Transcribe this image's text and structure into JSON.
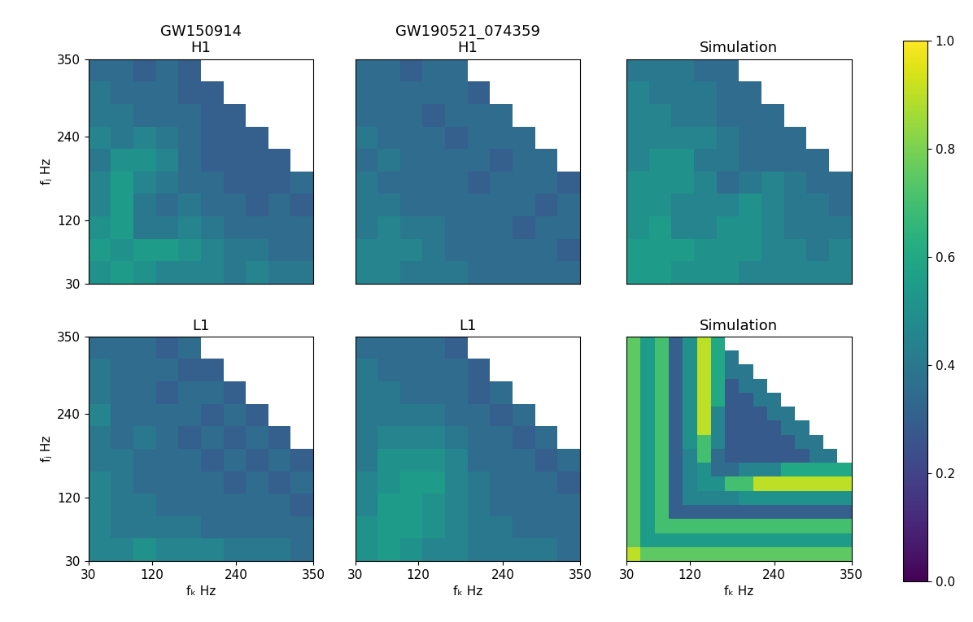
{
  "chart_data": [
    {
      "type": "heatmap",
      "title": "GW150914\nH1",
      "ylabel": "fⱼ Hz",
      "xlim": [
        30,
        350
      ],
      "ylim": [
        30,
        350
      ],
      "yticks": [
        30,
        120,
        240,
        350
      ],
      "x_edges": [
        30,
        62,
        94,
        126,
        158,
        190,
        222,
        254,
        286,
        318,
        350
      ],
      "y_edges": [
        30,
        62,
        94,
        126,
        158,
        190,
        222,
        254,
        286,
        318,
        350
      ],
      "cells": [
        [
          0.5,
          0.55,
          0.5,
          0.45,
          0.45,
          0.45,
          0.4,
          0.45,
          0.4,
          0.4
        ],
        [
          0.55,
          0.5,
          0.55,
          0.55,
          0.5,
          0.45,
          0.4,
          0.4,
          0.35,
          0.35
        ],
        [
          0.5,
          0.55,
          0.4,
          0.4,
          0.45,
          0.4,
          0.35,
          0.35,
          0.35,
          0.35
        ],
        [
          0.45,
          0.55,
          0.4,
          0.35,
          0.4,
          0.35,
          0.35,
          0.3,
          0.35,
          0.3
        ],
        [
          0.45,
          0.55,
          0.45,
          0.4,
          0.35,
          0.35,
          0.3,
          0.3,
          0.3,
          0.35
        ],
        [
          0.4,
          0.5,
          0.5,
          0.45,
          0.35,
          0.3,
          0.3,
          0.3,
          0.3,
          null
        ],
        [
          0.45,
          0.4,
          0.45,
          0.4,
          0.35,
          0.3,
          0.3,
          0.3,
          null,
          null
        ],
        [
          0.4,
          0.4,
          0.35,
          0.35,
          0.35,
          0.3,
          0.3,
          null,
          null,
          null
        ],
        [
          0.4,
          0.35,
          0.35,
          0.35,
          0.3,
          0.3,
          null,
          null,
          null,
          null
        ],
        [
          0.35,
          0.35,
          0.3,
          0.35,
          0.3,
          null,
          null,
          null,
          null,
          null
        ]
      ]
    },
    {
      "type": "heatmap",
      "title": "GW190521_074359\nH1",
      "xlim": [
        30,
        350
      ],
      "ylim": [
        30,
        350
      ],
      "x_edges": [
        30,
        62,
        94,
        126,
        158,
        190,
        222,
        254,
        286,
        318,
        350
      ],
      "y_edges": [
        30,
        62,
        94,
        126,
        158,
        190,
        222,
        254,
        286,
        318,
        350
      ],
      "cells": [
        [
          0.45,
          0.45,
          0.4,
          0.4,
          0.4,
          0.35,
          0.35,
          0.35,
          0.35,
          0.35
        ],
        [
          0.45,
          0.45,
          0.45,
          0.4,
          0.35,
          0.35,
          0.35,
          0.35,
          0.35,
          0.3
        ],
        [
          0.4,
          0.45,
          0.4,
          0.4,
          0.35,
          0.35,
          0.35,
          0.3,
          0.35,
          0.35
        ],
        [
          0.4,
          0.4,
          0.35,
          0.35,
          0.35,
          0.35,
          0.35,
          0.35,
          0.3,
          0.35
        ],
        [
          0.4,
          0.35,
          0.35,
          0.35,
          0.35,
          0.3,
          0.35,
          0.35,
          0.35,
          0.3
        ],
        [
          0.35,
          0.4,
          0.35,
          0.35,
          0.35,
          0.35,
          0.3,
          0.35,
          0.35,
          null
        ],
        [
          0.4,
          0.35,
          0.35,
          0.35,
          0.3,
          0.35,
          0.35,
          0.35,
          null,
          null
        ],
        [
          0.35,
          0.35,
          0.35,
          0.3,
          0.35,
          0.35,
          0.35,
          null,
          null,
          null
        ],
        [
          0.35,
          0.35,
          0.35,
          0.35,
          0.35,
          0.3,
          null,
          null,
          null,
          null
        ],
        [
          0.35,
          0.35,
          0.3,
          0.35,
          0.35,
          null,
          null,
          null,
          null,
          null
        ]
      ]
    },
    {
      "type": "heatmap",
      "title": "Simulation",
      "xlim": [
        30,
        350
      ],
      "ylim": [
        30,
        350
      ],
      "x_edges": [
        30,
        62,
        94,
        126,
        158,
        190,
        222,
        254,
        286,
        318,
        350
      ],
      "y_edges": [
        30,
        62,
        94,
        126,
        158,
        190,
        222,
        254,
        286,
        318,
        350
      ],
      "cells": [
        [
          0.55,
          0.55,
          0.5,
          0.5,
          0.5,
          0.45,
          0.45,
          0.45,
          0.45,
          0.45
        ],
        [
          0.55,
          0.55,
          0.55,
          0.5,
          0.5,
          0.5,
          0.45,
          0.45,
          0.4,
          0.45
        ],
        [
          0.5,
          0.55,
          0.45,
          0.45,
          0.5,
          0.5,
          0.45,
          0.4,
          0.4,
          0.4
        ],
        [
          0.5,
          0.5,
          0.45,
          0.45,
          0.45,
          0.5,
          0.45,
          0.4,
          0.4,
          0.35
        ],
        [
          0.5,
          0.5,
          0.5,
          0.45,
          0.35,
          0.4,
          0.45,
          0.4,
          0.35,
          0.35
        ],
        [
          0.45,
          0.5,
          0.5,
          0.4,
          0.4,
          0.35,
          0.35,
          0.35,
          0.35,
          null
        ],
        [
          0.45,
          0.45,
          0.45,
          0.45,
          0.4,
          0.35,
          0.35,
          0.35,
          null,
          null
        ],
        [
          0.45,
          0.45,
          0.4,
          0.4,
          0.35,
          0.35,
          0.35,
          null,
          null,
          null
        ],
        [
          0.45,
          0.4,
          0.4,
          0.4,
          0.35,
          0.35,
          null,
          null,
          null,
          null
        ],
        [
          0.4,
          0.4,
          0.4,
          0.35,
          0.35,
          null,
          null,
          null,
          null,
          null
        ]
      ]
    },
    {
      "type": "heatmap",
      "title": "L1",
      "xlabel": "fₖ Hz",
      "ylabel": "fⱼ Hz",
      "xlim": [
        30,
        350
      ],
      "ylim": [
        30,
        350
      ],
      "xticks": [
        30,
        120,
        240,
        350
      ],
      "yticks": [
        30,
        120,
        240,
        350
      ],
      "x_edges": [
        30,
        62,
        94,
        126,
        158,
        190,
        222,
        254,
        286,
        318,
        350
      ],
      "y_edges": [
        30,
        62,
        94,
        126,
        158,
        190,
        222,
        254,
        286,
        318,
        350
      ],
      "cells": [
        [
          0.45,
          0.45,
          0.5,
          0.45,
          0.45,
          0.45,
          0.4,
          0.4,
          0.4,
          0.35
        ],
        [
          0.45,
          0.4,
          0.4,
          0.4,
          0.4,
          0.35,
          0.35,
          0.35,
          0.35,
          0.35
        ],
        [
          0.45,
          0.4,
          0.4,
          0.35,
          0.35,
          0.35,
          0.35,
          0.35,
          0.35,
          0.3
        ],
        [
          0.45,
          0.4,
          0.35,
          0.35,
          0.35,
          0.35,
          0.3,
          0.35,
          0.3,
          0.35
        ],
        [
          0.4,
          0.4,
          0.35,
          0.35,
          0.35,
          0.3,
          0.35,
          0.3,
          0.35,
          0.3
        ],
        [
          0.4,
          0.35,
          0.4,
          0.35,
          0.3,
          0.35,
          0.3,
          0.35,
          0.3,
          null
        ],
        [
          0.45,
          0.35,
          0.35,
          0.35,
          0.35,
          0.3,
          0.35,
          0.3,
          null,
          null
        ],
        [
          0.4,
          0.35,
          0.35,
          0.3,
          0.35,
          0.35,
          0.3,
          null,
          null,
          null
        ],
        [
          0.4,
          0.35,
          0.35,
          0.35,
          0.3,
          0.3,
          null,
          null,
          null,
          null
        ],
        [
          0.35,
          0.35,
          0.35,
          0.3,
          0.35,
          null,
          null,
          null,
          null,
          null
        ]
      ]
    },
    {
      "type": "heatmap",
      "title": "L1",
      "xlabel": "fₖ Hz",
      "xlim": [
        30,
        350
      ],
      "ylim": [
        30,
        350
      ],
      "xticks": [
        30,
        120,
        240,
        350
      ],
      "x_edges": [
        30,
        62,
        94,
        126,
        158,
        190,
        222,
        254,
        286,
        318,
        350
      ],
      "y_edges": [
        30,
        62,
        94,
        126,
        158,
        190,
        222,
        254,
        286,
        318,
        350
      ],
      "cells": [
        [
          0.5,
          0.55,
          0.5,
          0.45,
          0.45,
          0.4,
          0.4,
          0.4,
          0.4,
          0.35
        ],
        [
          0.5,
          0.55,
          0.55,
          0.5,
          0.45,
          0.4,
          0.4,
          0.35,
          0.35,
          0.35
        ],
        [
          0.45,
          0.55,
          0.55,
          0.5,
          0.45,
          0.4,
          0.35,
          0.35,
          0.35,
          0.35
        ],
        [
          0.45,
          0.5,
          0.55,
          0.55,
          0.45,
          0.4,
          0.35,
          0.35,
          0.35,
          0.3
        ],
        [
          0.4,
          0.5,
          0.5,
          0.5,
          0.45,
          0.35,
          0.35,
          0.35,
          0.3,
          0.35
        ],
        [
          0.4,
          0.45,
          0.45,
          0.45,
          0.4,
          0.35,
          0.35,
          0.3,
          0.35,
          null
        ],
        [
          0.4,
          0.4,
          0.4,
          0.4,
          0.35,
          0.35,
          0.3,
          0.35,
          null,
          null
        ],
        [
          0.4,
          0.4,
          0.35,
          0.35,
          0.35,
          0.3,
          0.35,
          null,
          null,
          null
        ],
        [
          0.4,
          0.35,
          0.35,
          0.35,
          0.35,
          0.3,
          null,
          null,
          null,
          null
        ],
        [
          0.35,
          0.35,
          0.35,
          0.35,
          0.3,
          null,
          null,
          null,
          null,
          null
        ]
      ]
    },
    {
      "type": "heatmap",
      "title": "Simulation",
      "xlabel": "fₖ Hz",
      "xlim": [
        30,
        350
      ],
      "ylim": [
        30,
        350
      ],
      "xticks": [
        30,
        120,
        240,
        350
      ],
      "x_edges": [
        30,
        50,
        70,
        90,
        110,
        130,
        150,
        170,
        190,
        210,
        230,
        250,
        270,
        290,
        310,
        330,
        350
      ],
      "y_edges": [
        30,
        50,
        70,
        90,
        110,
        130,
        150,
        170,
        190,
        210,
        230,
        250,
        270,
        290,
        310,
        330,
        350
      ],
      "cells": [
        [
          0.9,
          0.75,
          0.75,
          0.75,
          0.75,
          0.75,
          0.75,
          0.75,
          0.75,
          0.75,
          0.75,
          0.75,
          0.75,
          0.75,
          0.75,
          0.75
        ],
        [
          0.75,
          0.55,
          0.55,
          0.55,
          0.55,
          0.55,
          0.55,
          0.55,
          0.55,
          0.55,
          0.55,
          0.55,
          0.55,
          0.55,
          0.55,
          0.55
        ],
        [
          0.75,
          0.55,
          0.7,
          0.7,
          0.7,
          0.7,
          0.7,
          0.7,
          0.7,
          0.7,
          0.7,
          0.7,
          0.7,
          0.7,
          0.7,
          0.7
        ],
        [
          0.75,
          0.55,
          0.7,
          0.3,
          0.3,
          0.3,
          0.3,
          0.3,
          0.3,
          0.3,
          0.3,
          0.3,
          0.3,
          0.3,
          0.3,
          0.3
        ],
        [
          0.75,
          0.55,
          0.7,
          0.3,
          0.45,
          0.45,
          0.45,
          0.45,
          0.5,
          0.5,
          0.5,
          0.5,
          0.5,
          0.5,
          0.5,
          0.5
        ],
        [
          0.75,
          0.55,
          0.7,
          0.3,
          0.45,
          0.5,
          0.5,
          0.7,
          0.7,
          0.9,
          0.9,
          0.9,
          0.9,
          0.9,
          0.9,
          0.9
        ],
        [
          0.75,
          0.55,
          0.7,
          0.3,
          0.45,
          0.5,
          0.35,
          0.35,
          0.45,
          0.45,
          0.45,
          0.6,
          0.6,
          0.6,
          0.6,
          0.6
        ],
        [
          0.75,
          0.55,
          0.7,
          0.3,
          0.45,
          0.7,
          0.35,
          0.28,
          0.28,
          0.28,
          0.28,
          0.28,
          0.28,
          0.4,
          0.4,
          null
        ],
        [
          0.75,
          0.55,
          0.7,
          0.3,
          0.5,
          0.7,
          0.45,
          0.28,
          0.28,
          0.28,
          0.28,
          0.28,
          0.4,
          0.4,
          null,
          null
        ],
        [
          0.75,
          0.55,
          0.7,
          0.3,
          0.5,
          0.9,
          0.45,
          0.28,
          0.28,
          0.28,
          0.28,
          0.4,
          0.4,
          null,
          null,
          null
        ],
        [
          0.75,
          0.55,
          0.7,
          0.3,
          0.5,
          0.9,
          0.45,
          0.28,
          0.28,
          0.28,
          0.4,
          0.4,
          null,
          null,
          null,
          null
        ],
        [
          0.75,
          0.55,
          0.7,
          0.3,
          0.5,
          0.9,
          0.6,
          0.28,
          0.28,
          0.4,
          0.4,
          null,
          null,
          null,
          null,
          null
        ],
        [
          0.75,
          0.55,
          0.7,
          0.3,
          0.5,
          0.9,
          0.6,
          0.28,
          0.4,
          0.4,
          null,
          null,
          null,
          null,
          null,
          null
        ],
        [
          0.75,
          0.55,
          0.7,
          0.3,
          0.5,
          0.9,
          0.6,
          0.4,
          0.4,
          null,
          null,
          null,
          null,
          null,
          null,
          null
        ],
        [
          0.75,
          0.55,
          0.7,
          0.3,
          0.5,
          0.9,
          0.6,
          0.4,
          null,
          null,
          null,
          null,
          null,
          null,
          null,
          null
        ],
        [
          0.75,
          0.55,
          0.7,
          0.3,
          0.5,
          0.9,
          0.6,
          null,
          null,
          null,
          null,
          null,
          null,
          null,
          null,
          null
        ]
      ]
    }
  ],
  "colorbar": {
    "range": [
      0,
      1
    ],
    "ticks": [
      {
        "value": 0.0,
        "label": "0.0"
      },
      {
        "value": 0.2,
        "label": "0.2"
      },
      {
        "value": 0.4,
        "label": "0.4"
      },
      {
        "value": 0.6,
        "label": "0.6"
      },
      {
        "value": 0.8,
        "label": "0.8"
      },
      {
        "value": 1.0,
        "label": "1.0"
      }
    ]
  }
}
